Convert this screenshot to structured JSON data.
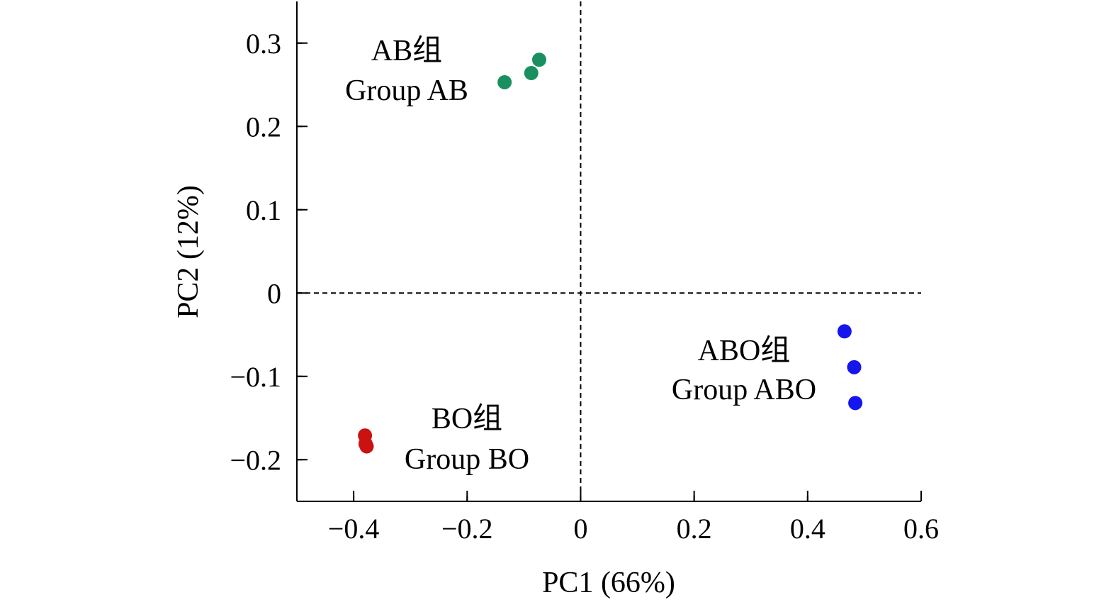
{
  "chart_data": {
    "type": "scatter",
    "xlabel": "PC1 (66%)",
    "ylabel": "PC2 (12%)",
    "xlim": [
      -0.5,
      0.6
    ],
    "ylim": [
      -0.25,
      0.35
    ],
    "x_ticks": [
      -0.4,
      -0.2,
      0,
      0.2,
      0.4,
      0.6
    ],
    "x_tick_labels": [
      "−0.4",
      "−0.2",
      "0",
      "0.2",
      "0.4",
      "0.6"
    ],
    "y_ticks": [
      -0.2,
      -0.1,
      0,
      0.1,
      0.2,
      0.3
    ],
    "y_tick_labels": [
      "−0.2",
      "−0.1",
      "0",
      "0.1",
      "0.2",
      "0.3"
    ],
    "reference_lines": {
      "x": 0,
      "y": 0,
      "style": "dashed"
    },
    "grid": false,
    "series": [
      {
        "label_cn": "AB组",
        "label_en": "Group AB",
        "color": "#1a9060",
        "points": [
          {
            "x": -0.134,
            "y": 0.253
          },
          {
            "x": -0.087,
            "y": 0.264
          },
          {
            "x": -0.073,
            "y": 0.28
          }
        ]
      },
      {
        "label_cn": "BO组",
        "label_en": "Group BO",
        "color": "#cc1111",
        "points": [
          {
            "x": -0.38,
            "y": -0.171
          },
          {
            "x": -0.379,
            "y": -0.181
          },
          {
            "x": -0.377,
            "y": -0.184
          }
        ]
      },
      {
        "label_cn": "ABO组",
        "label_en": "Group ABO",
        "color": "#1515ee",
        "points": [
          {
            "x": 0.465,
            "y": -0.046
          },
          {
            "x": 0.482,
            "y": -0.089
          },
          {
            "x": 0.484,
            "y": -0.132
          }
        ]
      }
    ]
  }
}
